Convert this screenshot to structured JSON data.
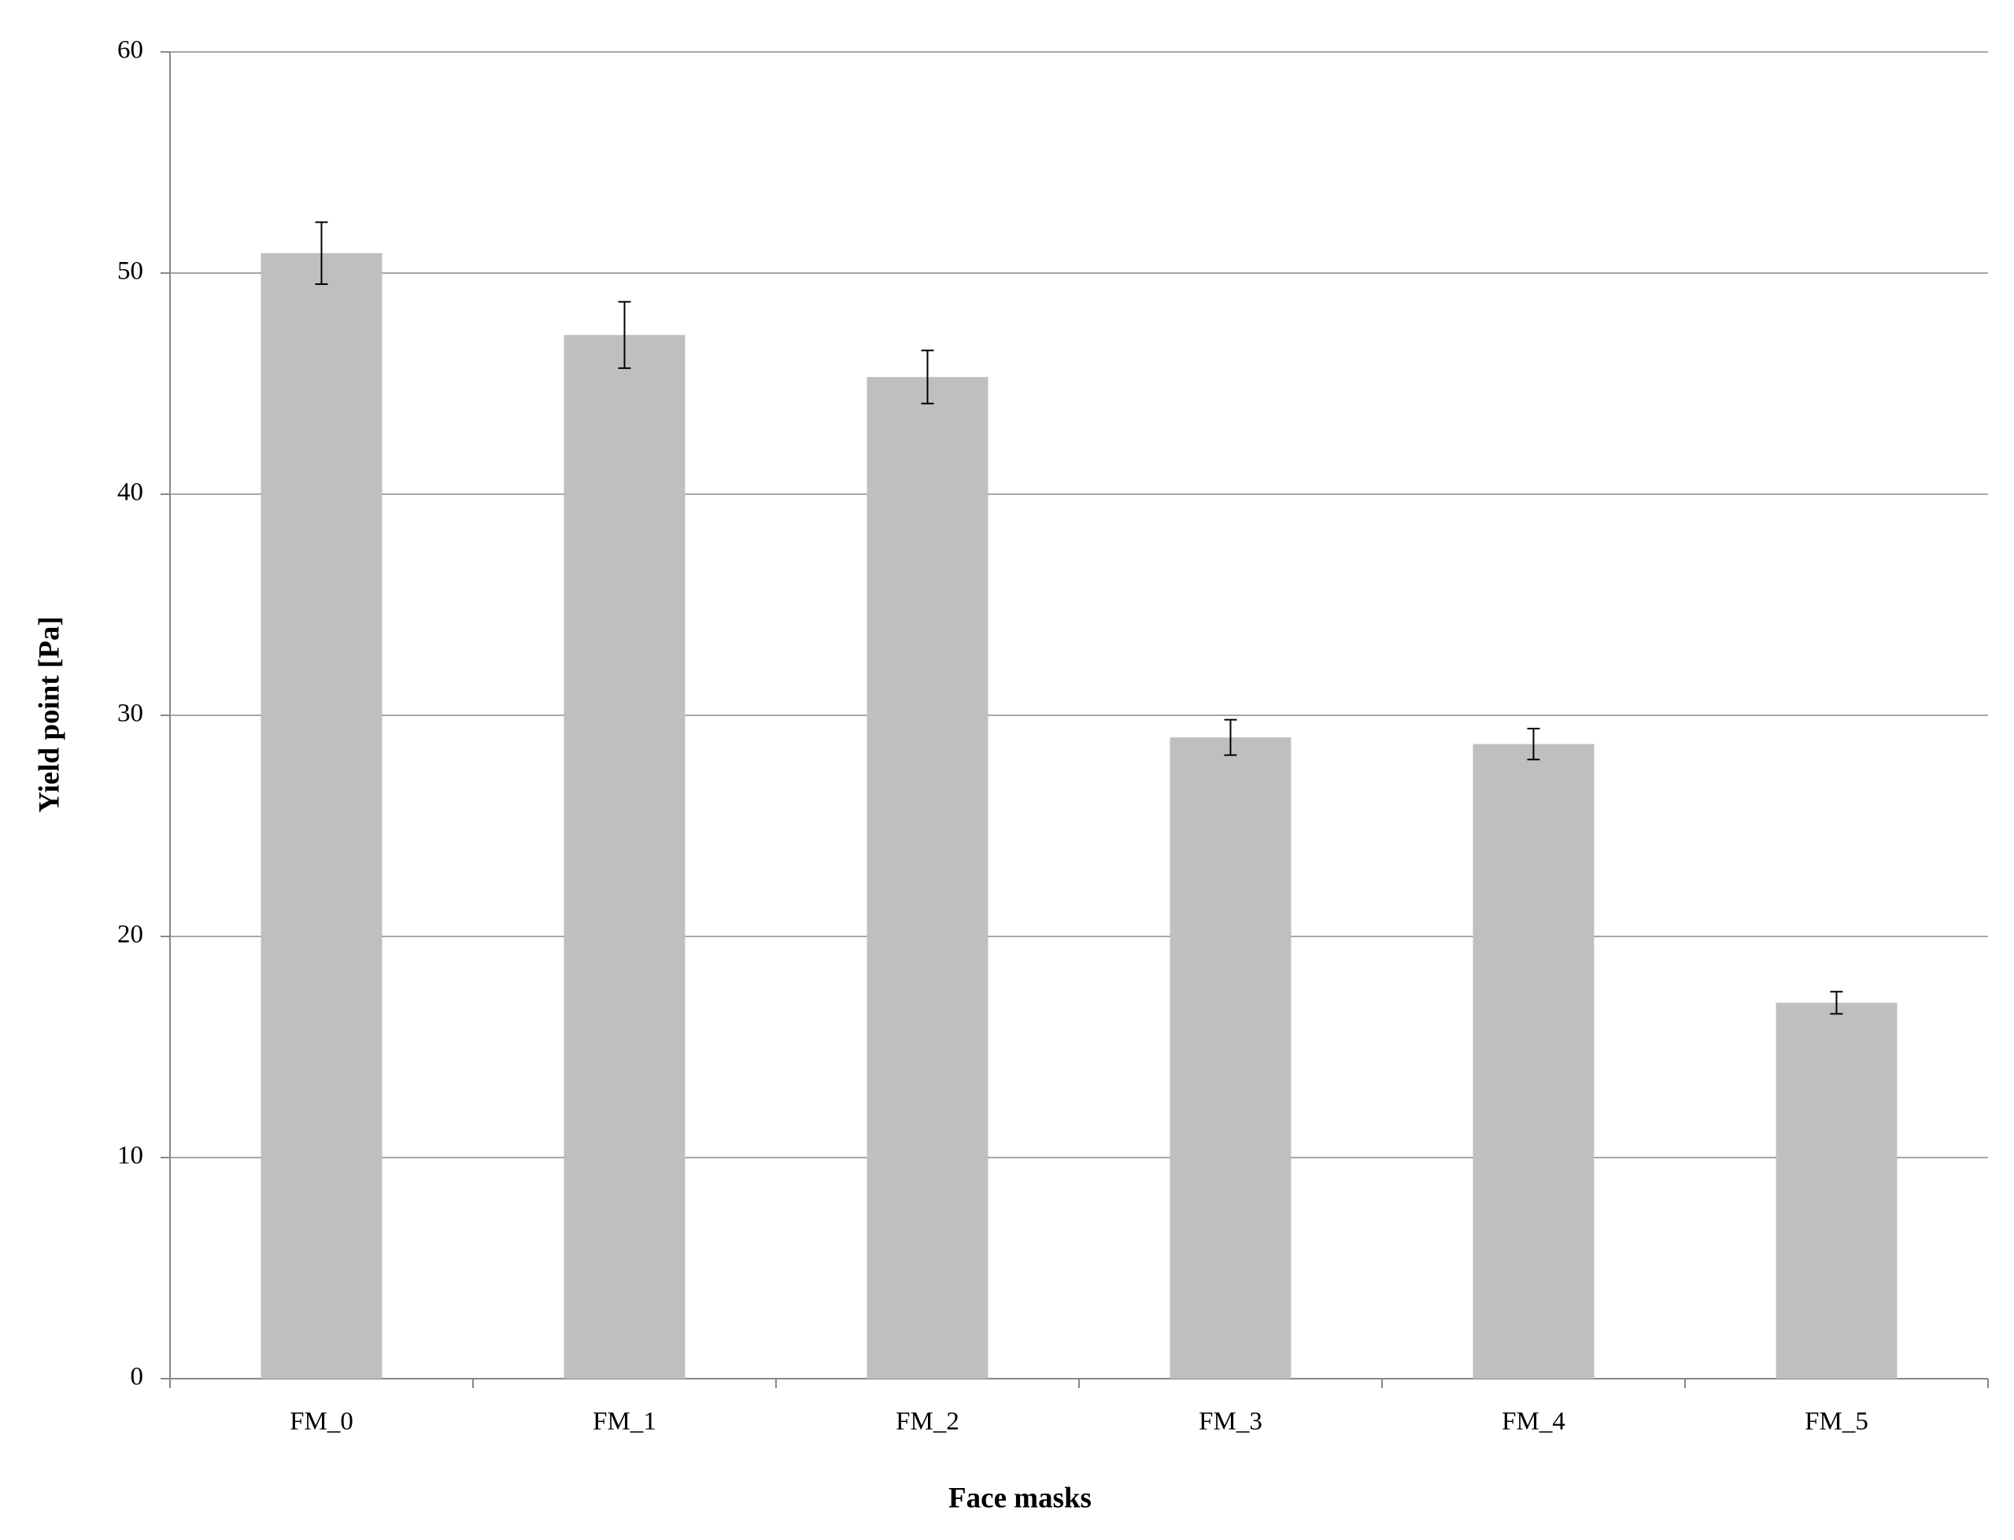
{
  "chart_data": {
    "type": "bar",
    "x_label": "Face masks",
    "y_label": "Yield point [Pa]",
    "categories": [
      "FM_0",
      "FM_1",
      "FM_2",
      "FM_3",
      "FM_4",
      "FM_5"
    ],
    "values": [
      50.9,
      47.2,
      45.3,
      29.0,
      28.7,
      17.0
    ],
    "errors": [
      1.4,
      1.5,
      1.2,
      0.8,
      0.7,
      0.5
    ],
    "color": "#bfbfbf",
    "ylim": [
      0,
      60
    ],
    "yticks": [
      0,
      10,
      20,
      30,
      40,
      50,
      60
    ],
    "grid": true
  }
}
